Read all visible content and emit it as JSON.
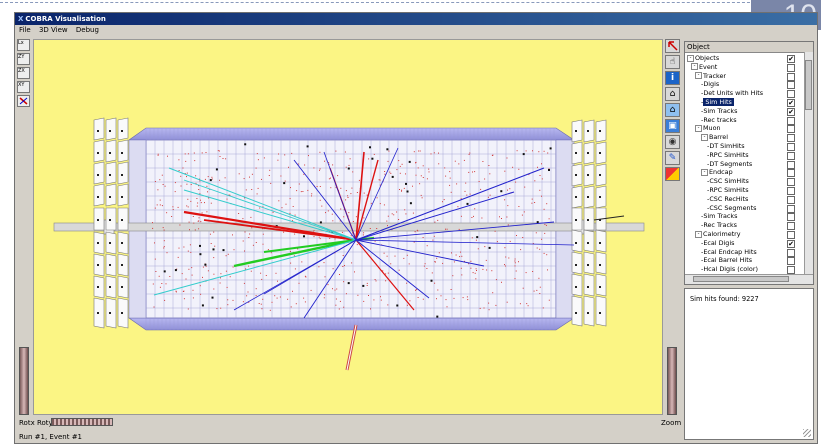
{
  "slide": {
    "corner_number": "10"
  },
  "window": {
    "title": "COBRA Visualisation"
  },
  "menu": {
    "file": "File",
    "view3d": "3D View",
    "debug": "Debug"
  },
  "left_toolbar": [
    {
      "label": "Lx",
      "icon": "axis-x-icon"
    },
    {
      "label": "ZY",
      "icon": "axis-zy-icon"
    },
    {
      "label": "ZX",
      "icon": "axis-zx-icon"
    },
    {
      "label": "XY",
      "icon": "axis-xy-icon"
    },
    {
      "label": "",
      "icon": "pick-arrow-icon"
    }
  ],
  "right_toolbar": [
    {
      "icon": "select-arrow-icon"
    },
    {
      "icon": "hand-icon"
    },
    {
      "icon": "info-icon"
    },
    {
      "icon": "home-icon"
    },
    {
      "icon": "save-home-icon"
    },
    {
      "icon": "view-all-icon"
    },
    {
      "icon": "eye-icon"
    },
    {
      "icon": "pencil-icon"
    },
    {
      "icon": "color-icon"
    }
  ],
  "controls": {
    "rotx_roty_label": "Rotx Roty",
    "zoom_label": "Zoom"
  },
  "status": {
    "text": "Run #1, Event #1"
  },
  "tree": {
    "header": "Object",
    "items": [
      {
        "label": "Objects",
        "checked": true
      },
      {
        "label": "Event",
        "checked": false
      },
      {
        "label": "Tracker",
        "checked": false
      },
      {
        "label": "Digis",
        "checked": false
      },
      {
        "label": "Det Units with Hits",
        "checked": false
      },
      {
        "label": "Sim Hits",
        "checked": true,
        "selected": true
      },
      {
        "label": "Sim Tracks",
        "checked": true
      },
      {
        "label": "Rec tracks",
        "checked": false
      },
      {
        "label": "Muon",
        "checked": false
      },
      {
        "label": "Barrel",
        "checked": false
      },
      {
        "label": "DT SimHits",
        "checked": false
      },
      {
        "label": "RPC SimHits",
        "checked": false
      },
      {
        "label": "DT Segments",
        "checked": false
      },
      {
        "label": "Endcap",
        "checked": false
      },
      {
        "label": "CSC SimHits",
        "checked": false
      },
      {
        "label": "RPC SimHits",
        "checked": false
      },
      {
        "label": "CSC RecHits",
        "checked": false
      },
      {
        "label": "CSC Segments",
        "checked": false
      },
      {
        "label": "Sim Tracks",
        "checked": false
      },
      {
        "label": "Rec Tracks",
        "checked": false
      },
      {
        "label": "Calorimetry",
        "checked": false
      },
      {
        "label": "Ecal Digis",
        "checked": true
      },
      {
        "label": "Ecal Endcap Hits",
        "checked": false
      },
      {
        "label": "Ecal Barrel Hits",
        "checked": false
      },
      {
        "label": "Hcal Digis (color)",
        "checked": false
      }
    ]
  },
  "info": {
    "text": "Sim hits found:  9227"
  }
}
